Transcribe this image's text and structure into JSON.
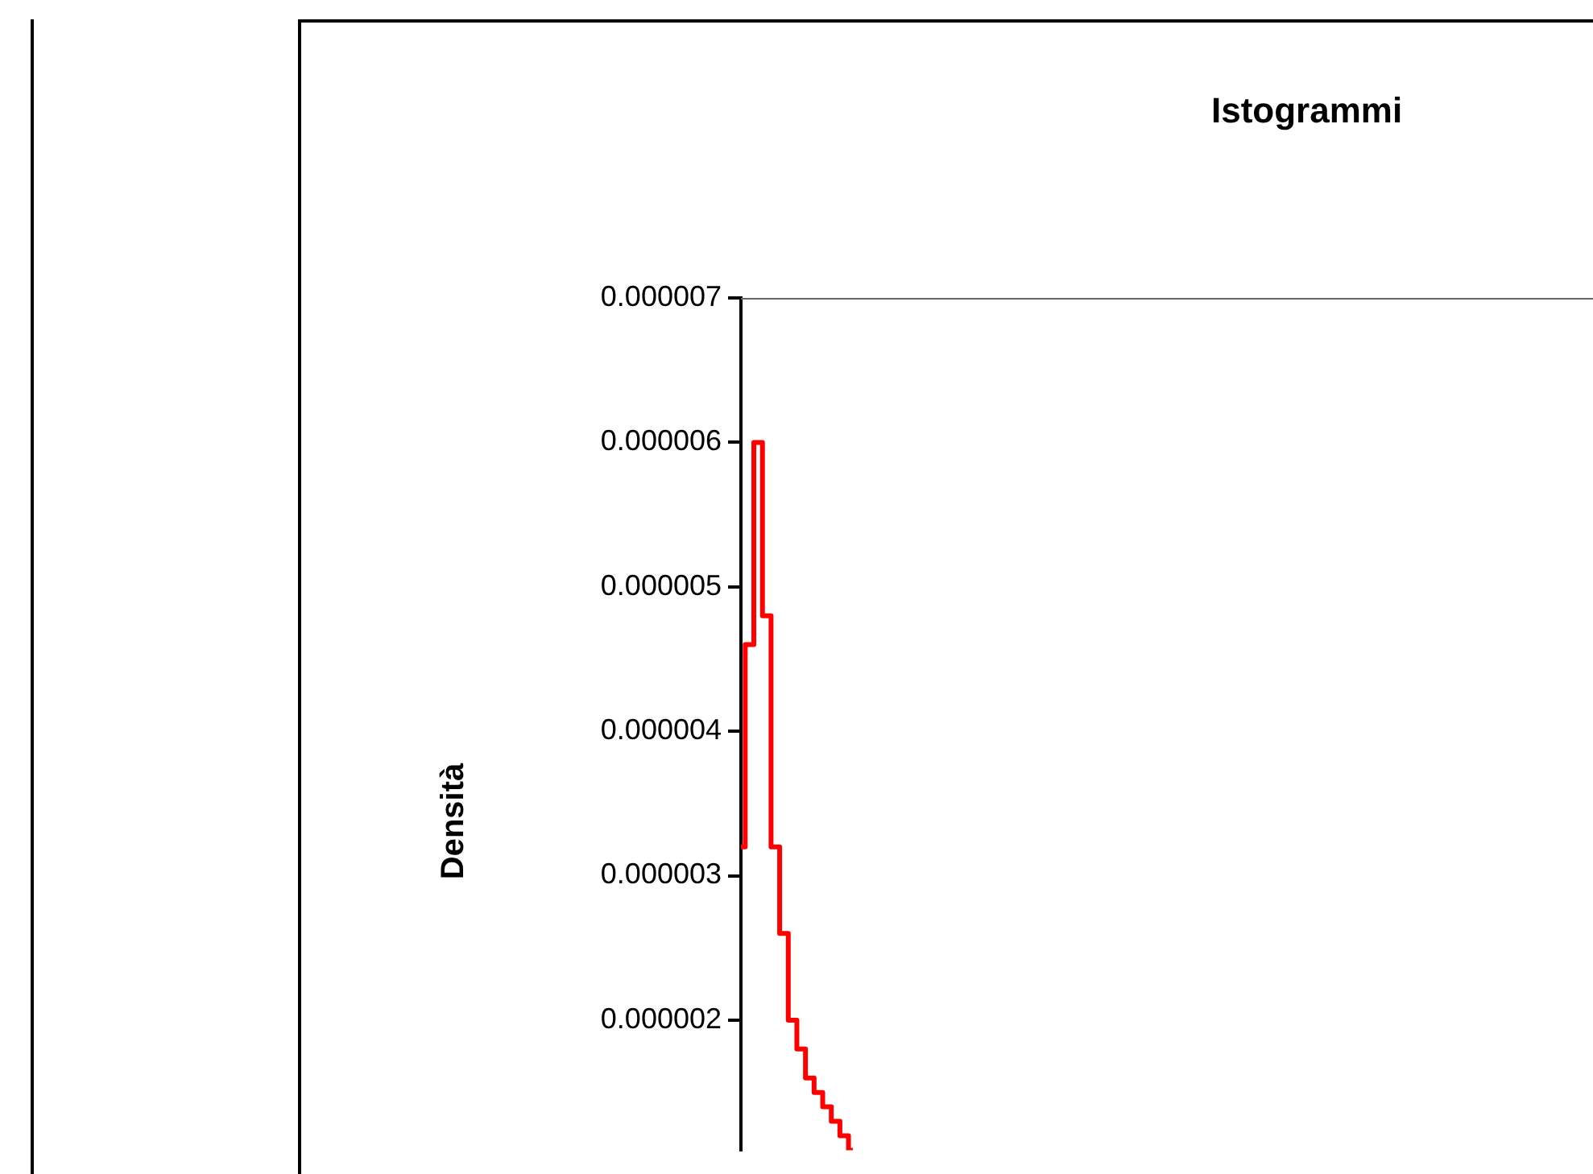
{
  "chart_data": {
    "type": "step",
    "title": "Istogrammi",
    "ylabel": "Densità",
    "tick_labels": "y",
    "grid": false,
    "legend": false,
    "marker": "none",
    "categories": [
      null,
      null,
      null,
      null,
      null,
      null,
      null,
      null,
      null,
      null,
      null,
      null,
      null,
      null,
      null,
      null,
      null,
      null,
      null,
      null,
      null,
      null,
      null,
      null,
      null,
      null,
      null,
      null,
      null,
      null,
      null,
      null,
      null,
      null,
      null,
      null,
      null,
      null,
      null,
      null,
      null,
      null,
      null,
      null,
      null,
      null,
      null,
      null,
      null,
      null,
      null,
      null,
      null,
      null,
      null,
      null,
      null,
      null,
      null,
      null,
      null,
      null,
      null,
      null,
      null,
      null,
      null,
      null,
      null,
      null,
      null,
      null,
      null,
      null,
      null,
      null,
      null,
      null,
      null,
      null,
      null,
      null,
      null,
      null,
      null,
      null,
      null,
      null,
      null,
      null,
      null,
      null,
      null,
      null,
      null,
      null,
      null,
      null,
      null,
      null
    ],
    "series": [
      {
        "color": "#ff0000",
        "values": [
          3.2e-06,
          4.6e-06,
          6e-06,
          4.8e-06,
          3.2e-06,
          2.6e-06,
          2e-06,
          1.8e-06,
          1.6e-06,
          1.5e-06,
          1.4e-06,
          1.3e-06,
          1.2e-06,
          1.1e-06,
          null,
          null,
          null,
          null,
          null,
          null,
          null,
          null,
          null,
          null,
          null,
          null,
          null,
          null,
          null,
          null,
          null,
          null,
          null,
          null,
          null,
          null,
          null,
          null,
          null,
          null,
          null,
          null,
          null,
          null,
          null,
          null,
          null,
          null,
          null,
          null,
          null,
          null,
          null,
          null,
          null,
          null,
          null,
          null,
          null,
          null,
          null,
          null,
          null,
          null,
          null,
          null,
          null,
          null,
          null,
          null,
          null,
          null,
          null,
          null,
          null,
          null,
          null,
          null,
          null,
          null,
          null,
          null,
          null,
          null,
          null,
          null,
          null,
          null,
          null,
          null,
          null,
          null,
          null,
          null,
          null,
          null,
          null,
          null,
          null,
          null
        ]
      }
    ],
    "ylim": [
      1.1e-06,
      7e-06
    ],
    "yticks": [
      {
        "value": 2e-06,
        "label": "0.000002"
      },
      {
        "value": 3e-06,
        "label": "0.000003"
      },
      {
        "value": 4e-06,
        "label": "0.000004"
      },
      {
        "value": 5e-06,
        "label": "0.000005"
      },
      {
        "value": 6e-06,
        "label": "0.000006"
      },
      {
        "value": 7e-06,
        "label": "0.000007"
      }
    ]
  }
}
